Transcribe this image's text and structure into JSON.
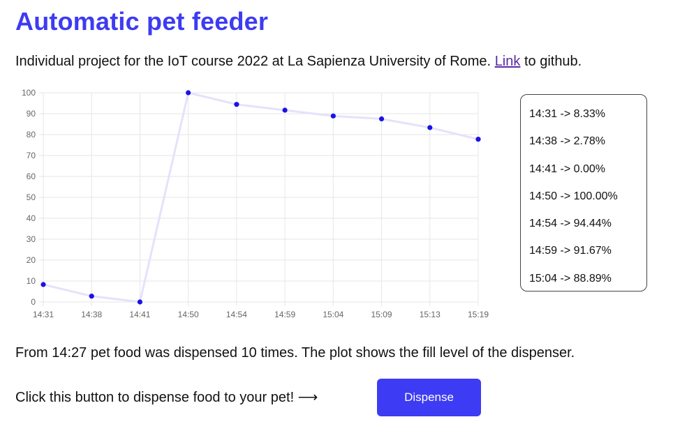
{
  "page": {
    "title": "Automatic pet feeder",
    "intro_text": "Individual project for the IoT course 2022 at La Sapienza University of Rome.",
    "link_label": "Link",
    "intro_suffix": "to github.",
    "summary": "From 14:27 pet food was dispensed 10 times. The plot shows the fill level of the dispenser.",
    "cta_text": "Click this button to dispense food to your pet! ⟶",
    "button_label": "Dispense"
  },
  "log": [
    "14:31 -> 8.33%",
    "14:38 -> 2.78%",
    "14:41 -> 0.00%",
    "14:50 -> 100.00%",
    "14:54 -> 94.44%",
    "14:59 -> 91.67%",
    "15:04 -> 88.89%"
  ],
  "colors": {
    "accent": "#3d3bf3",
    "link": "#5a2ca0",
    "line": "#e4e2fb",
    "point": "#1a12e6"
  },
  "chart_data": {
    "type": "line",
    "categories": [
      "14:31",
      "14:38",
      "14:41",
      "14:50",
      "14:54",
      "14:59",
      "15:04",
      "15:09",
      "15:13",
      "15:19"
    ],
    "values": [
      8.33,
      2.78,
      0.0,
      100.0,
      94.44,
      91.67,
      88.89,
      87.5,
      83.33,
      77.78
    ],
    "yticks": [
      0,
      10,
      20,
      30,
      40,
      50,
      60,
      70,
      80,
      90,
      100
    ],
    "ylim": [
      0,
      100
    ],
    "grid": true,
    "title": "",
    "xlabel": "",
    "ylabel": ""
  }
}
